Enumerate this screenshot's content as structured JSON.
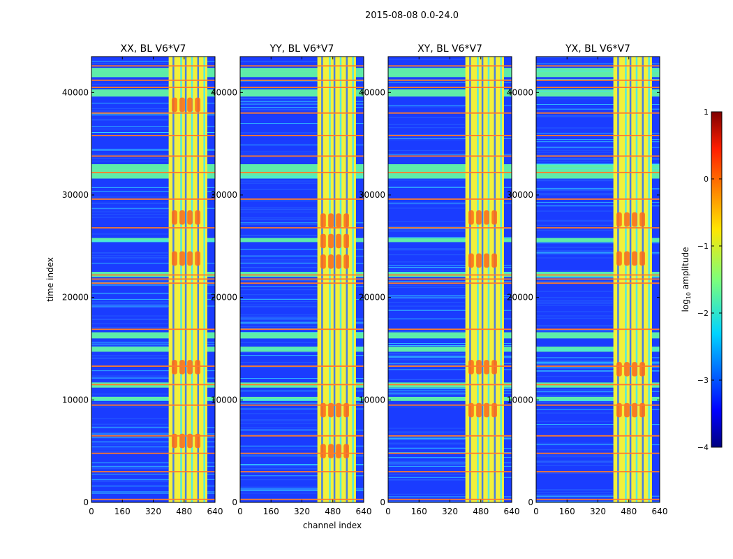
{
  "suptitle": "2015-08-08 0.0-24.0",
  "xlabel": "channel index",
  "ylabel": "time index",
  "colorbar": {
    "label_main": "log",
    "label_sub": "10",
    "label_tail": " amplitude",
    "ticks": [
      "1",
      "0",
      "−1",
      "−2",
      "−3",
      "−4"
    ],
    "tick_values": [
      1,
      0,
      -1,
      -2,
      -3,
      -4
    ],
    "range": [
      -4,
      1
    ],
    "colormap": "jet"
  },
  "colors": {
    "background_blue": "#1a3cff",
    "light_blue": "#2b6cff",
    "rfi_green": "#66ffa0",
    "rfi_orange": "#ff7a2a",
    "band_yellow": "#f2f03a",
    "band_red": "#ff6a18",
    "band_cyan": "#38e8ff"
  },
  "chart_data": [
    {
      "type": "heatmap",
      "title": "XX, BL V6*V7",
      "xlim": [
        0,
        640
      ],
      "ylim": [
        0,
        43500
      ],
      "xticks": [
        "0",
        "160",
        "320",
        "480",
        "640"
      ],
      "xtick_values": [
        0,
        160,
        320,
        480,
        640
      ],
      "yticks": [
        "0",
        "10000",
        "20000",
        "30000",
        "40000"
      ],
      "ytick_values": [
        0,
        10000,
        20000,
        30000,
        40000
      ],
      "rfi_band_channels": [
        400,
        600
      ],
      "blobs_time": [
        27800,
        23800,
        13200,
        38800,
        6000
      ]
    },
    {
      "type": "heatmap",
      "title": "YY, BL V6*V7",
      "xlim": [
        0,
        640
      ],
      "ylim": [
        0,
        43500
      ],
      "xticks": [
        "0",
        "160",
        "320",
        "480",
        "640"
      ],
      "xtick_values": [
        0,
        160,
        320,
        480,
        640
      ],
      "yticks": [
        "0",
        "10000",
        "20000",
        "30000",
        "40000"
      ],
      "ytick_values": [
        0,
        10000,
        20000,
        30000,
        40000
      ],
      "rfi_band_channels": [
        400,
        600
      ],
      "blobs_time": [
        27500,
        23500,
        25500,
        9000,
        5000
      ]
    },
    {
      "type": "heatmap",
      "title": "XY, BL V6*V7",
      "xlim": [
        0,
        640
      ],
      "ylim": [
        0,
        43500
      ],
      "xticks": [
        "0",
        "160",
        "320",
        "480",
        "640"
      ],
      "xtick_values": [
        0,
        160,
        320,
        480,
        640
      ],
      "yticks": [
        "0",
        "10000",
        "20000",
        "30000",
        "40000"
      ],
      "ytick_values": [
        0,
        10000,
        20000,
        30000,
        40000
      ],
      "rfi_band_channels": [
        400,
        600
      ],
      "blobs_time": [
        27800,
        23600,
        9000,
        13200
      ]
    },
    {
      "type": "heatmap",
      "title": "YX, BL V6*V7",
      "xlim": [
        0,
        640
      ],
      "ylim": [
        0,
        43500
      ],
      "xticks": [
        "0",
        "160",
        "320",
        "480",
        "640"
      ],
      "xtick_values": [
        0,
        160,
        320,
        480,
        640
      ],
      "yticks": [
        "0",
        "10000",
        "20000",
        "30000",
        "40000"
      ],
      "ytick_values": [
        0,
        10000,
        20000,
        30000,
        40000
      ],
      "rfi_band_channels": [
        400,
        600
      ],
      "blobs_time": [
        27600,
        23800,
        9000,
        13000
      ]
    }
  ]
}
